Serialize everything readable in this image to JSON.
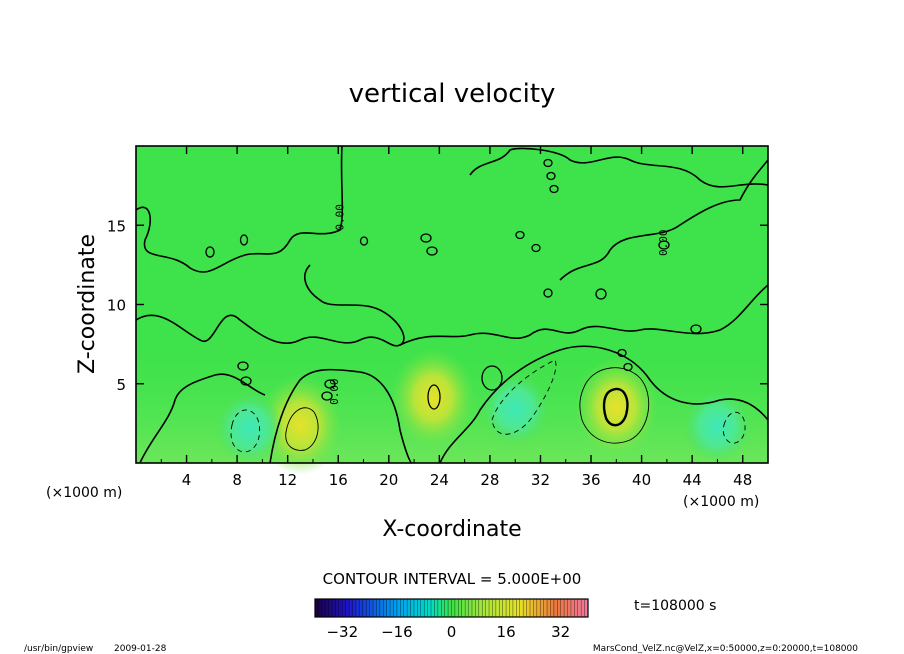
{
  "chart_data": {
    "type": "heatmap",
    "title": "vertical velocity",
    "xlabel": "X-coordinate",
    "ylabel": "Z-coordinate",
    "x_unit_left": "(×1000 m)",
    "x_unit_right": "(×1000 m)",
    "xlim": [
      0,
      50
    ],
    "ylim": [
      0,
      20
    ],
    "x_ticks": [
      4,
      8,
      12,
      16,
      20,
      24,
      28,
      32,
      36,
      40,
      44,
      48
    ],
    "y_ticks": [
      5,
      10,
      15
    ],
    "contour_interval_label": "CONTOUR INTERVAL = 5.000E+00",
    "contour_labels": [
      {
        "text": "0.00",
        "x": 16,
        "y": 4.5
      },
      {
        "text": "0.00",
        "x": 16.4,
        "y": 15.5
      },
      {
        "text": "0.00",
        "x": 42,
        "y": 13.9
      }
    ],
    "time_label": "t=108000 s",
    "colorbar": {
      "ticks": [
        -32,
        -16,
        0,
        16,
        32
      ],
      "range": [
        -40,
        40
      ],
      "colors": {
        "low": "#1a0040",
        "neg": "#00d0e0",
        "zero": "#40e040",
        "pos": "#e0e000",
        "high": "#e04040"
      }
    },
    "features": [
      {
        "x": 38,
        "y": 3.5,
        "sign": "pos"
      },
      {
        "x": 13,
        "y": 2.4,
        "sign": "pos"
      },
      {
        "x": 23.5,
        "y": 4.1,
        "sign": "pos"
      },
      {
        "x": 9,
        "y": 2.2,
        "sign": "neg"
      },
      {
        "x": 30,
        "y": 3.4,
        "sign": "neg"
      },
      {
        "x": 46,
        "y": 2.3,
        "sign": "neg"
      }
    ]
  },
  "footer": {
    "left": "/usr/bin/gpview",
    "date": "2009-01-28",
    "right": "MarsCond_VelZ.nc@VelZ,x=0:50000,z=0:20000,t=108000"
  }
}
